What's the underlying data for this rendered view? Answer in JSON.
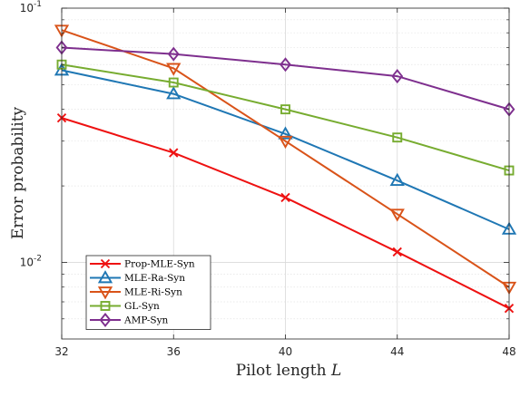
{
  "chart_data": {
    "type": "line",
    "x": [
      32,
      36,
      40,
      44,
      48
    ],
    "x_ticks": [
      "32",
      "36",
      "40",
      "44",
      "48"
    ],
    "xlim": [
      32,
      48
    ],
    "ylim": [
      0.005,
      0.1
    ],
    "y_scale": "log",
    "y_tick_labels": [
      {
        "value": 0.1,
        "base": "10",
        "exp": "-1"
      },
      {
        "value": 0.01,
        "base": "10",
        "exp": "-2"
      }
    ],
    "xlabel": "Pilot length",
    "xlabel_var": "L",
    "ylabel": "Error probability",
    "grid": true,
    "legend_position": "bottom-left",
    "series": [
      {
        "name": "Prop-MLE-Syn",
        "color": "#ee1111",
        "marker": "x",
        "values": [
          0.037,
          0.027,
          0.018,
          0.011,
          0.0066
        ]
      },
      {
        "name": "MLE-Ra-Syn",
        "color": "#1f77b4",
        "marker": "triangle-up",
        "values": [
          0.057,
          0.046,
          0.032,
          0.021,
          0.0135
        ]
      },
      {
        "name": "MLE-Ri-Syn",
        "color": "#d95319",
        "marker": "triangle-down",
        "values": [
          0.082,
          0.058,
          0.03,
          0.0155,
          0.008
        ]
      },
      {
        "name": "GL-Syn",
        "color": "#77ac30",
        "marker": "square",
        "values": [
          0.06,
          0.051,
          0.04,
          0.031,
          0.023
        ]
      },
      {
        "name": "AMP-Syn",
        "color": "#7e2f8e",
        "marker": "diamond",
        "values": [
          0.07,
          0.066,
          0.06,
          0.054,
          0.04
        ]
      }
    ]
  }
}
